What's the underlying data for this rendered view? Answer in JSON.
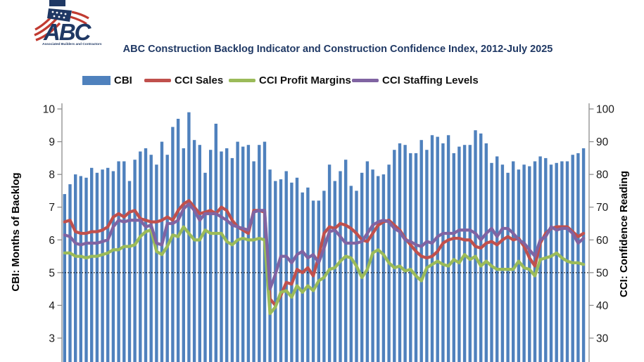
{
  "logo": {
    "brand": "ABC",
    "tagline": "Associated Builders and Contractors",
    "navy": "#1F3864",
    "red": "#C13B31"
  },
  "title": "ABC Construction Backlog Indicator and Construction Confidence Index, 2012-July 2025",
  "legend": [
    {
      "label": "CBI",
      "color": "#4F81BD",
      "type": "bar"
    },
    {
      "label": "CCI Sales",
      "color": "#C0504D",
      "type": "line"
    },
    {
      "label": "CCI Profit Margins",
      "color": "#9BBB59",
      "type": "line"
    },
    {
      "label": "CCI Staffing Levels",
      "color": "#8064A2",
      "type": "line"
    }
  ],
  "axes": {
    "left": {
      "label": "CBI: Months of Backlog",
      "ticks": [
        10,
        9,
        8,
        7,
        6,
        5,
        4,
        3
      ],
      "range": [
        3,
        10
      ]
    },
    "right": {
      "label": "CCI: Confidence Reading",
      "ticks": [
        100,
        90,
        80,
        70,
        60,
        50,
        40,
        30
      ],
      "range": [
        30,
        100
      ]
    }
  },
  "threshold": {
    "cbi": 5.0,
    "cci": 50,
    "style": "dotted-black"
  },
  "chart_data": {
    "type": "bar+line",
    "title": "ABC Construction Backlog Indicator and Construction Confidence Index, 2012-July 2025",
    "x_range": "2012 through July 2025 (x-axis labels cropped below image edge)",
    "grid": "off",
    "legend_position": "top",
    "bars": {
      "name": "CBI",
      "unit": "months of backlog",
      "axis": "left",
      "color": "#4F81BD",
      "values": [
        7.4,
        7.7,
        8.0,
        7.95,
        7.9,
        8.2,
        8.05,
        8.15,
        8.2,
        8.1,
        8.4,
        8.4,
        7.8,
        8.45,
        8.7,
        8.8,
        8.6,
        8.3,
        9.0,
        8.6,
        9.45,
        9.7,
        8.8,
        9.9,
        9.05,
        8.9,
        8.05,
        8.75,
        9.55,
        8.7,
        8.8,
        8.5,
        9.0,
        8.85,
        8.9,
        8.4,
        8.9,
        9.0,
        8.15,
        7.8,
        7.85,
        8.1,
        7.75,
        7.9,
        7.45,
        7.6,
        7.2,
        7.2,
        7.5,
        8.3,
        7.8,
        8.1,
        8.45,
        7.65,
        7.5,
        8.05,
        8.4,
        8.15,
        7.95,
        8.0,
        8.3,
        8.75,
        8.95,
        8.9,
        8.65,
        8.65,
        9.05,
        8.75,
        9.2,
        9.15,
        8.95,
        9.2,
        8.65,
        8.85,
        8.9,
        8.9,
        9.35,
        9.25,
        8.95,
        8.35,
        8.55,
        8.3,
        8.05,
        8.4,
        8.15,
        8.3,
        8.25,
        8.4,
        8.55,
        8.5,
        8.3,
        8.35,
        8.4,
        8.4,
        8.6,
        8.65,
        8.8
      ]
    },
    "series": [
      {
        "name": "CCI Sales",
        "axis": "right",
        "unit": "confidence reading",
        "color": "#C0504D",
        "values": [
          65.5,
          66,
          62.5,
          62,
          62,
          62.5,
          62.5,
          63,
          64,
          67,
          68,
          67,
          68.5,
          69,
          66.5,
          66,
          65.5,
          65.5,
          66,
          67,
          66,
          69,
          71,
          72,
          70,
          68,
          68.5,
          69,
          68,
          70,
          69,
          66,
          64,
          63,
          62,
          69,
          69,
          68.5,
          42,
          40,
          43,
          47,
          46.5,
          51,
          50,
          51.5,
          49,
          55,
          62,
          64,
          63.5,
          65,
          64.5,
          63.5,
          62,
          60,
          59.5,
          62,
          64.5,
          65.5,
          66,
          64.5,
          63,
          60.5,
          58.5,
          56.5,
          55,
          54.5,
          55,
          56.5,
          59,
          60,
          60.5,
          60.5,
          60,
          60,
          58,
          57.5,
          59,
          59.5,
          58.5,
          60,
          61,
          60,
          60.5,
          58,
          54.5,
          52,
          59,
          62,
          63.5,
          64,
          64,
          64,
          62.5,
          61,
          62
        ]
      },
      {
        "name": "CCI Profit Margins",
        "axis": "right",
        "unit": "confidence reading",
        "color": "#9BBB59",
        "values": [
          56,
          56,
          55,
          55,
          54.5,
          55,
          55,
          55.5,
          56,
          57,
          57,
          58,
          58,
          58.5,
          61,
          62.5,
          63,
          56.5,
          55.5,
          58,
          61.5,
          61,
          64,
          62,
          60,
          60,
          63,
          62,
          62,
          62,
          59.5,
          58.5,
          60,
          60.5,
          60,
          60,
          60.5,
          60,
          37.5,
          39.5,
          44,
          44.5,
          42.5,
          46,
          44,
          46,
          44.5,
          47.5,
          48.5,
          51,
          51.5,
          53.5,
          55,
          54.5,
          52,
          48.5,
          51,
          56,
          57,
          55.5,
          53,
          51.5,
          52,
          50.5,
          51,
          49,
          47.5,
          51.5,
          52.5,
          53.5,
          52.5,
          52,
          54,
          53,
          55.5,
          54,
          55,
          52,
          53.5,
          52,
          51,
          51,
          51,
          51,
          53.5,
          51.5,
          51,
          49,
          54,
          54.5,
          55,
          56,
          54.5,
          53.5,
          53,
          53,
          52.5
        ]
      },
      {
        "name": "CCI Staffing Levels",
        "axis": "right",
        "unit": "confidence reading",
        "color": "#8064A2",
        "values": [
          61.5,
          61,
          59,
          58.5,
          59,
          59,
          59,
          59.5,
          60,
          64,
          66,
          65.5,
          66,
          66,
          66,
          64,
          64.5,
          59,
          58.5,
          65,
          65,
          66,
          69.5,
          71,
          69,
          66,
          68,
          68,
          68,
          67,
          66,
          64.5,
          64,
          63.5,
          63,
          68.5,
          69,
          69,
          45,
          49.5,
          55,
          55,
          53,
          55.5,
          56.5,
          54.5,
          55.5,
          53,
          57.5,
          62.5,
          63,
          61,
          59,
          59,
          59,
          59.5,
          62,
          64.5,
          65.5,
          66,
          65.5,
          63.5,
          62.5,
          60,
          59.5,
          58.5,
          58,
          59.5,
          59,
          61,
          62,
          62,
          62,
          63,
          63,
          63,
          62,
          60,
          62,
          63.5,
          61,
          63.5,
          63.5,
          62,
          60,
          59,
          57,
          55,
          60,
          61,
          64,
          63,
          63.5,
          63.5,
          62,
          59,
          60.5
        ]
      }
    ],
    "annotations": [
      {
        "type": "threshold-line",
        "right_axis_value": 50,
        "left_axis_value": 5.0
      }
    ]
  }
}
